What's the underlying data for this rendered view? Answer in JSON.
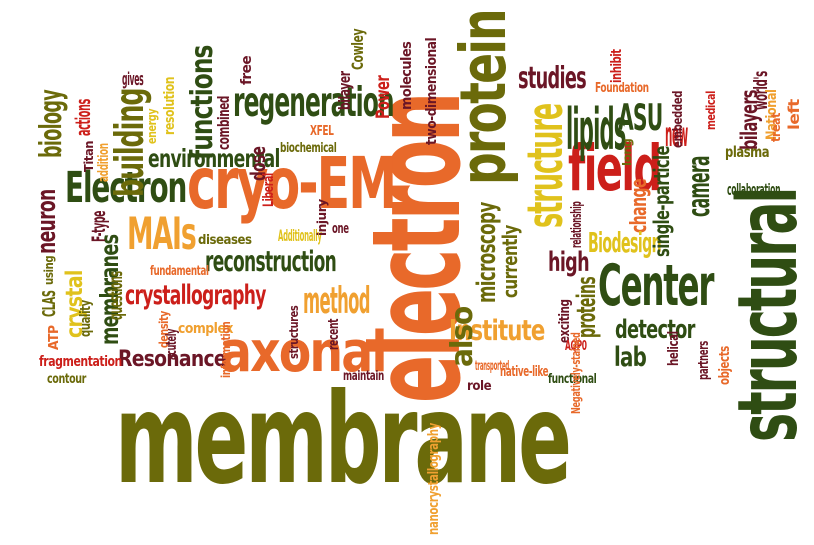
{
  "title": "",
  "palette": {
    "olive": "#6b6a0a",
    "dark_green": "#2f4d13",
    "orange": "#e8692a",
    "light_orange": "#f0a030",
    "red": "#cc1f1a",
    "yellow": "#e0c21c",
    "maroon": "#6b1626"
  },
  "words": [
    {
      "text": "membrane",
      "color": "#6b6a0a"
    },
    {
      "text": "electron",
      "color": "#e8692a"
    },
    {
      "text": "protein",
      "color": "#6b6a0a"
    },
    {
      "text": "structural",
      "color": "#2f4d13"
    },
    {
      "text": "cryo-EM",
      "color": "#e8692a"
    },
    {
      "text": "axonal",
      "color": "#e8692a"
    },
    {
      "text": "regeneration",
      "color": "#2f4d13"
    },
    {
      "text": "Electron",
      "color": "#2f4d13"
    },
    {
      "text": "Center",
      "color": "#2f4d13"
    },
    {
      "text": "field",
      "color": "#cc1f1a"
    },
    {
      "text": "structure",
      "color": "#e0c21c"
    },
    {
      "text": "lipids",
      "color": "#2f4d13"
    },
    {
      "text": "MAIs",
      "color": "#f0a030"
    },
    {
      "text": "reconstruction",
      "color": "#2f4d13"
    },
    {
      "text": "crystallography",
      "color": "#cc1f1a"
    },
    {
      "text": "environmental",
      "color": "#2f4d13"
    },
    {
      "text": "method",
      "color": "#f0a030"
    },
    {
      "text": "Resonance",
      "color": "#6b1626"
    },
    {
      "text": "Institute",
      "color": "#f0a030"
    },
    {
      "text": "studies",
      "color": "#6b1626"
    },
    {
      "text": "functions",
      "color": "#2f4d13"
    },
    {
      "text": "building",
      "color": "#6b6a0a"
    },
    {
      "text": "biology",
      "color": "#6b6a0a"
    },
    {
      "text": "neuron",
      "color": "#6b1626"
    },
    {
      "text": "crystal",
      "color": "#e0c21c"
    },
    {
      "text": "membranes",
      "color": "#2f4d13"
    },
    {
      "text": "also",
      "color": "#6b6a0a"
    },
    {
      "text": "microscopy",
      "color": "#6b6a0a"
    },
    {
      "text": "currently",
      "color": "#6b6a0a"
    },
    {
      "text": "high",
      "color": "#6b1626"
    },
    {
      "text": "proteins",
      "color": "#6b6a0a"
    },
    {
      "text": "ASU",
      "color": "#2f4d13"
    },
    {
      "text": "change",
      "color": "#e8692a"
    },
    {
      "text": "Biodesign",
      "color": "#e0c21c"
    },
    {
      "text": "single-particle",
      "color": "#2f4d13"
    },
    {
      "text": "camera",
      "color": "#2f4d13"
    },
    {
      "text": "new",
      "color": "#cc1f1a"
    },
    {
      "text": "bilayers",
      "color": "#6b1626"
    },
    {
      "text": "detector",
      "color": "#2f4d13"
    },
    {
      "text": "lab",
      "color": "#2f4d13"
    },
    {
      "text": "plasma",
      "color": "#6b6a0a"
    },
    {
      "text": "collaboration",
      "color": "#2f4d13"
    },
    {
      "text": "world's",
      "color": "#6b1626"
    },
    {
      "text": "National",
      "color": "#f0a030"
    },
    {
      "text": "treat",
      "color": "#e8692a"
    },
    {
      "text": "left",
      "color": "#e8692a"
    },
    {
      "text": "medical",
      "color": "#cc1f1a"
    },
    {
      "text": "embedded",
      "color": "#6b1626"
    },
    {
      "text": "long",
      "color": "#6b6a0a"
    },
    {
      "text": "Foundation",
      "color": "#e8692a"
    },
    {
      "text": "inhibit",
      "color": "#cc1f1a"
    },
    {
      "text": "two-dimensional",
      "color": "#6b1626"
    },
    {
      "text": "molecules",
      "color": "#6b1626"
    },
    {
      "text": "Power",
      "color": "#cc1f1a"
    },
    {
      "text": "Cowley",
      "color": "#6b6a0a"
    },
    {
      "text": "bilayer",
      "color": "#6b1626"
    },
    {
      "text": "free",
      "color": "#6b1626"
    },
    {
      "text": "XFEL",
      "color": "#e8692a"
    },
    {
      "text": "biochemical",
      "color": "#6b6a0a"
    },
    {
      "text": "dose",
      "color": "#6b1626"
    },
    {
      "text": "combined",
      "color": "#6b1626"
    },
    {
      "text": "resolution",
      "color": "#e0c21c"
    },
    {
      "text": "energy",
      "color": "#e0c21c"
    },
    {
      "text": "gives",
      "color": "#6b1626"
    },
    {
      "text": "actions",
      "color": "#cc1f1a"
    },
    {
      "text": "addition",
      "color": "#f0a030"
    },
    {
      "text": "Titan",
      "color": "#6b1626"
    },
    {
      "text": "Liberal",
      "color": "#cc1f1a"
    },
    {
      "text": "F-type",
      "color": "#6b1626"
    },
    {
      "text": "questions",
      "color": "#6b6a0a"
    },
    {
      "text": "diseases",
      "color": "#6b6a0a"
    },
    {
      "text": "Additionally",
      "color": "#e0c21c"
    },
    {
      "text": "one",
      "color": "#6b1626"
    },
    {
      "text": "injury",
      "color": "#6b1626"
    },
    {
      "text": "fundamental",
      "color": "#e8692a"
    },
    {
      "text": "using",
      "color": "#6b6a0a"
    },
    {
      "text": "CLAS",
      "color": "#6b6a0a"
    },
    {
      "text": "quality",
      "color": "#6b6a0a"
    },
    {
      "text": "ATP",
      "color": "#e8692a"
    },
    {
      "text": "density",
      "color": "#e8692a"
    },
    {
      "text": "acutely",
      "color": "#6b1626"
    },
    {
      "text": "complex",
      "color": "#f0a030"
    },
    {
      "text": "information",
      "color": "#e8692a"
    },
    {
      "text": "structures",
      "color": "#6b1626"
    },
    {
      "text": "recent",
      "color": "#6b1626"
    },
    {
      "text": "relationship",
      "color": "#6b1626"
    },
    {
      "text": "exciting",
      "color": "#6b1626"
    },
    {
      "text": "fragmentation",
      "color": "#cc1f1a"
    },
    {
      "text": "contour",
      "color": "#6b6a0a"
    },
    {
      "text": "nanocrystallography",
      "color": "#f0a030"
    },
    {
      "text": "maintain",
      "color": "#6b1626"
    },
    {
      "text": "role",
      "color": "#6b1626"
    },
    {
      "text": "transported",
      "color": "#e8692a"
    },
    {
      "text": "AQP0",
      "color": "#cc1f1a"
    },
    {
      "text": "native-like",
      "color": "#e8692a"
    },
    {
      "text": "functional",
      "color": "#2f4d13"
    },
    {
      "text": "Negatively-stained",
      "color": "#e8692a"
    },
    {
      "text": "helical",
      "color": "#6b1626"
    },
    {
      "text": "partners",
      "color": "#6b1626"
    },
    {
      "text": "objects",
      "color": "#e8692a"
    }
  ]
}
